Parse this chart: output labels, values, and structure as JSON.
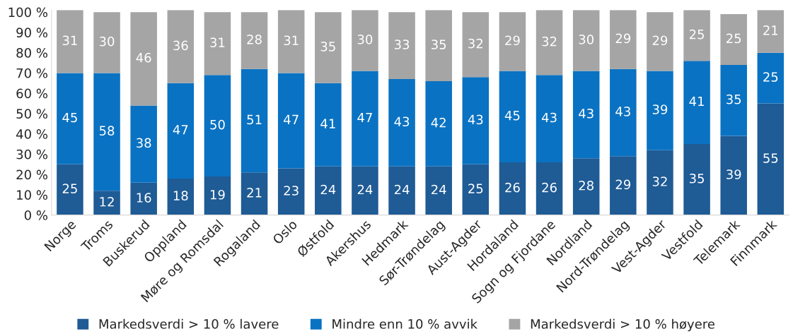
{
  "chart_data": {
    "type": "bar",
    "stacked": true,
    "data_labels": true,
    "grid": false,
    "legend": "bottom",
    "categories": [
      "Norge",
      "Troms",
      "Buskerud",
      "Oppland",
      "Møre og Romsdal",
      "Rogaland",
      "Oslo",
      "Østfold",
      "Akershus",
      "Hedmark",
      "Sør-Trøndelag",
      "Aust-Agder",
      "Hordaland",
      "Sogn og Fjordane",
      "Nordland",
      "Nord-Trøndelag",
      "Vest-Agder",
      "Vestfold",
      "Telemark",
      "Finnmark"
    ],
    "series": [
      {
        "name": "Markedsverdi > 10 % lavere",
        "color": "#1f5b95",
        "values": [
          25,
          12,
          16,
          18,
          19,
          21,
          23,
          24,
          24,
          24,
          24,
          25,
          26,
          26,
          28,
          29,
          32,
          35,
          39,
          55
        ]
      },
      {
        "name": "Mindre enn 10 % avvik",
        "color": "#0a72c2",
        "values": [
          45,
          58,
          38,
          47,
          50,
          51,
          47,
          41,
          47,
          43,
          42,
          43,
          45,
          43,
          43,
          43,
          39,
          41,
          35,
          25
        ]
      },
      {
        "name": "Markedsverdi > 10 % høyere",
        "color": "#a5a5a5",
        "values": [
          31,
          30,
          46,
          36,
          31,
          28,
          31,
          35,
          30,
          33,
          35,
          32,
          29,
          32,
          30,
          29,
          29,
          25,
          25,
          21
        ]
      }
    ],
    "ylim": [
      0,
      101
    ],
    "yticks": [
      {
        "value": 0,
        "label": "0 %"
      },
      {
        "value": 10,
        "label": "10 %"
      },
      {
        "value": 20,
        "label": "20 %"
      },
      {
        "value": 30,
        "label": "30 %"
      },
      {
        "value": 40,
        "label": "40 %"
      },
      {
        "value": 50,
        "label": "50 %"
      },
      {
        "value": 60,
        "label": "60 %"
      },
      {
        "value": 70,
        "label": "70 %"
      },
      {
        "value": 80,
        "label": "80 %"
      },
      {
        "value": 90,
        "label": "90 %"
      },
      {
        "value": 100,
        "label": "100 %"
      }
    ]
  }
}
